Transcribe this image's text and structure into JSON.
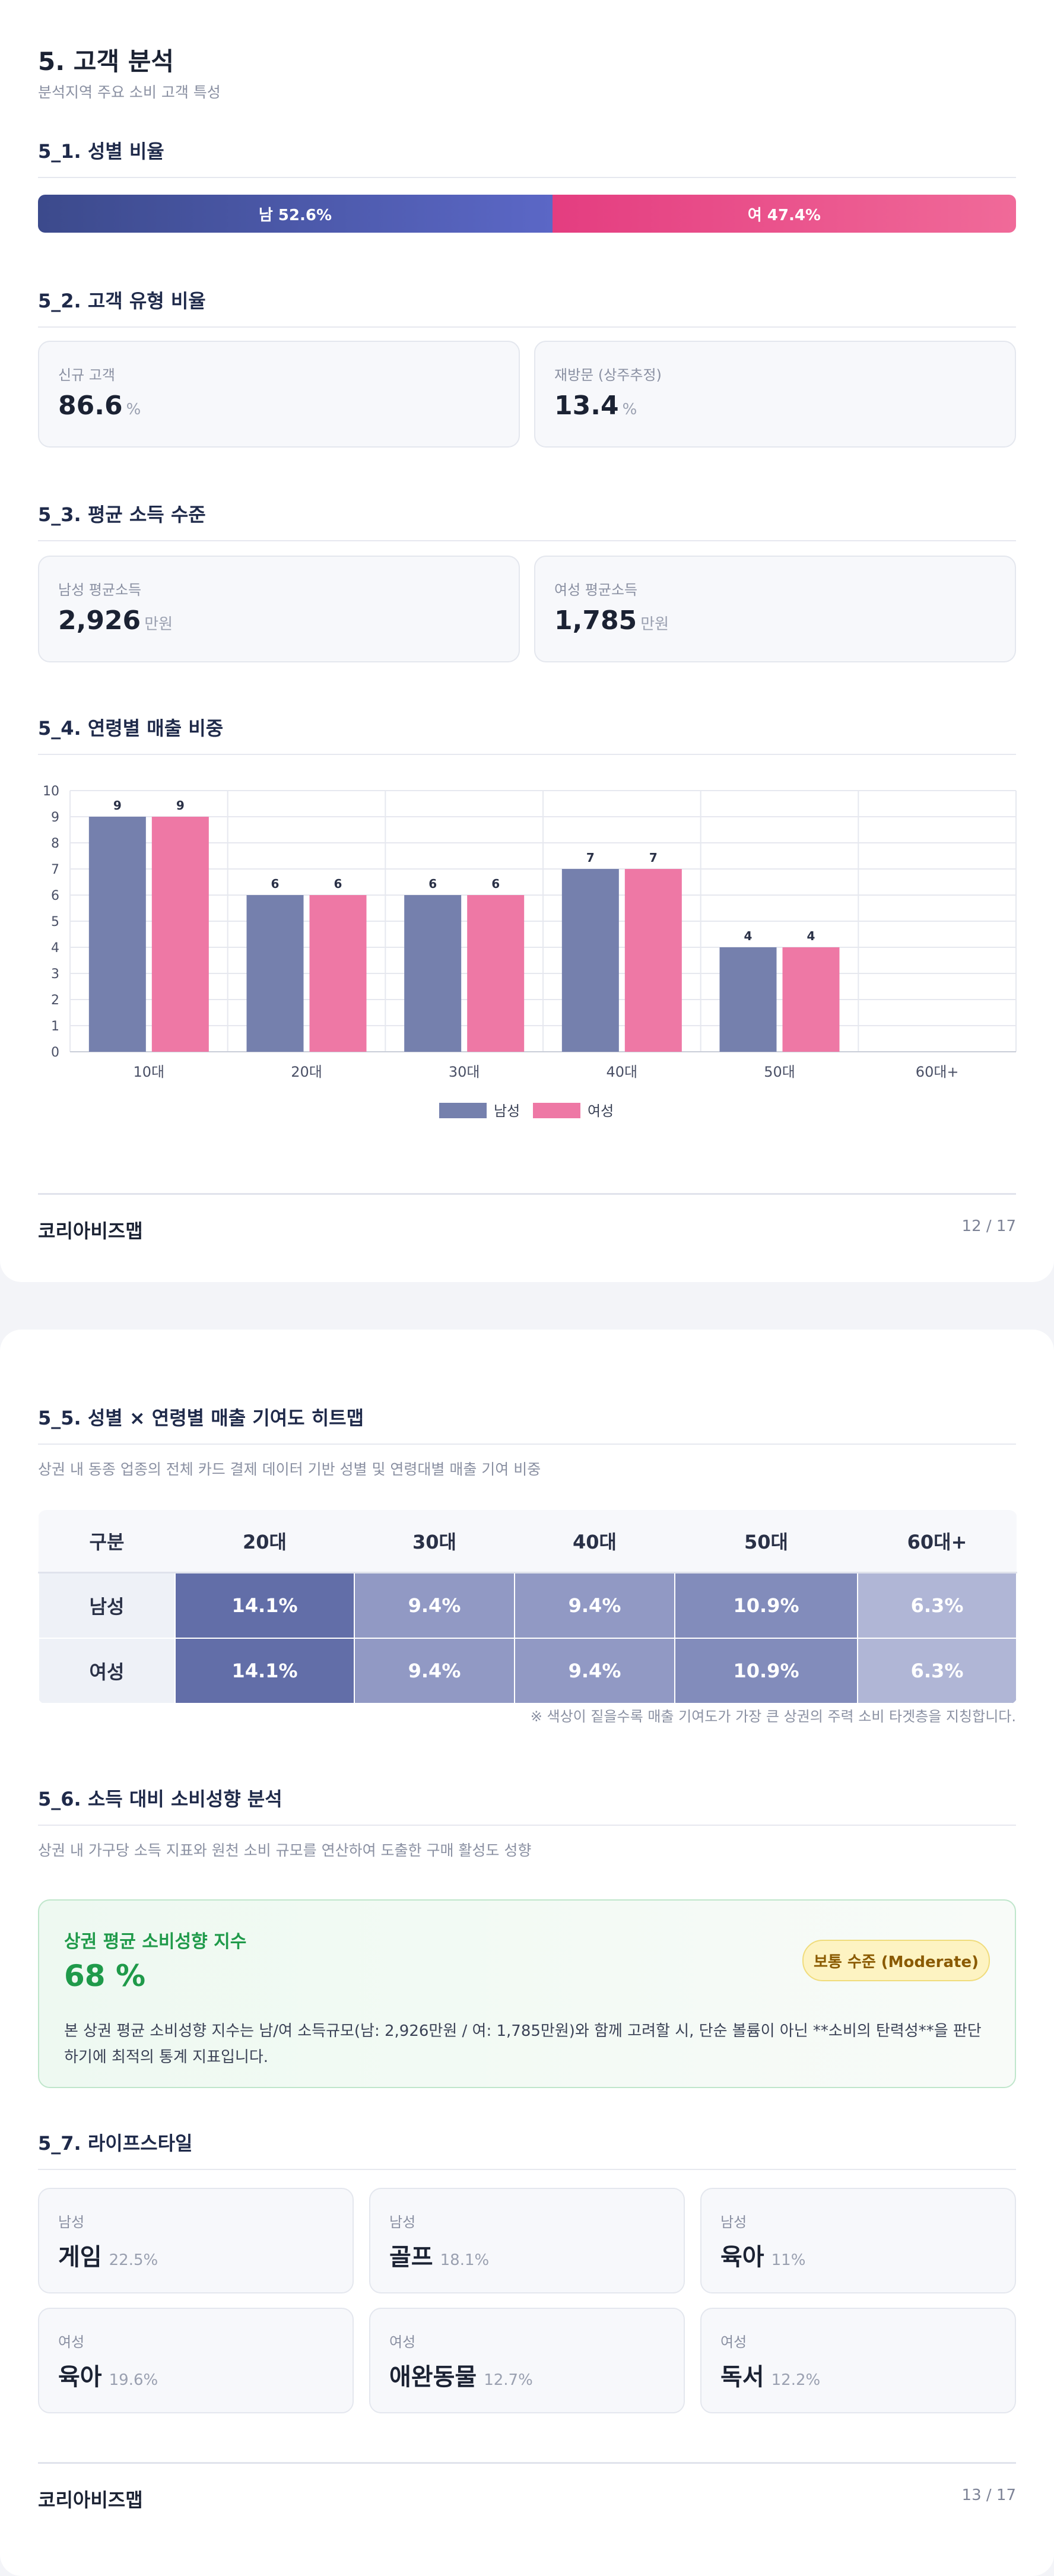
{
  "page1": {
    "title": "5. 고객 분석",
    "subtitle": "분석지역 주요 소비 고객 특성",
    "s1_title": "5_1. 성별 비율",
    "gender": {
      "male_label": "남 52.6%",
      "female_label": "여 47.4%",
      "male_pct": 52.6,
      "female_pct": 47.4,
      "male_color": "#4a58a8",
      "female_color": "#ec4a88"
    },
    "s2_title": "5_2. 고객 유형 비율",
    "new_customer": {
      "label": "신규 고객",
      "value": "86.6",
      "unit": "%"
    },
    "revisit": {
      "label": "재방문 (상주추정)",
      "value": "13.4",
      "unit": "%"
    },
    "s3_title": "5_3. 평균 소득 수준",
    "male_income": {
      "label": "남성 평균소득",
      "value": "2,926",
      "unit": "만원"
    },
    "female_income": {
      "label": "여성 평균소득",
      "value": "1,785",
      "unit": "만원"
    },
    "s4_title": "5_4. 연령별 매출 비중",
    "footer": {
      "brand": "코리아비즈맵",
      "page": "12 / 17"
    }
  },
  "chart_data": {
    "type": "bar",
    "categories": [
      "10대",
      "20대",
      "30대",
      "40대",
      "50대",
      "60대+"
    ],
    "series": [
      {
        "name": "남성",
        "values": [
          9,
          6,
          6,
          7,
          4,
          0
        ],
        "color": "#7580ad"
      },
      {
        "name": "여성",
        "values": [
          9,
          6,
          6,
          7,
          4,
          0
        ],
        "color": "#ee78a5"
      }
    ],
    "ylim": [
      0,
      10
    ],
    "yticks": [
      0,
      1,
      2,
      3,
      4,
      5,
      6,
      7,
      8,
      9,
      10
    ],
    "data_labels": true,
    "grid": true,
    "legend": "bottom"
  },
  "page2": {
    "s5_title": "5_5. 성별 × 연령별 매출 기여도 히트맵",
    "s5_sub": "상권 내 동종 업종의 전체 카드 결제 데이터 기반 성별 및 연령대별 매출 기여 비중",
    "heatmap": {
      "headers": [
        "구분",
        "20대",
        "30대",
        "40대",
        "50대",
        "60대+"
      ],
      "rows": [
        {
          "label": "남성",
          "values": [
            "14.1%",
            "9.4%",
            "9.4%",
            "10.9%",
            "6.3%"
          ]
        },
        {
          "label": "여성",
          "values": [
            "14.1%",
            "9.4%",
            "9.4%",
            "10.9%",
            "6.3%"
          ]
        }
      ]
    },
    "heat_note": "※ 색상이 짙을수록 매출 기여도가 가장 큰 상권의 주력 소비 타겟층을 지칭합니다.",
    "s6_title": "5_6. 소득 대비 소비성향 분석",
    "s6_sub": "상권 내 가구당 소득 지표와 원천 소비 규모를 연산하여 도출한 구매 활성도 성향",
    "spend": {
      "title": "상권 평균 소비성향 지수",
      "value": "68 %",
      "badge": "보통 수준 (Moderate)",
      "desc": "본 상권 평균 소비성향 지수는 남/여 소득규모(남: 2,926만원 / 여: 1,785만원)와 함께 고려할 시, 단순 볼륨이 아닌 **소비의 탄력성**을 판단하기에 최적의 통계 지표입니다."
    },
    "s7_title": "5_7. 라이프스타일",
    "lifestyle": [
      {
        "gender": "남성",
        "name": "게임",
        "pct": "22.5%"
      },
      {
        "gender": "남성",
        "name": "골프",
        "pct": "18.1%"
      },
      {
        "gender": "남성",
        "name": "육아",
        "pct": "11%"
      },
      {
        "gender": "여성",
        "name": "육아",
        "pct": "19.6%"
      },
      {
        "gender": "여성",
        "name": "애완동물",
        "pct": "12.7%"
      },
      {
        "gender": "여성",
        "name": "독서",
        "pct": "12.2%"
      }
    ],
    "footer": {
      "brand": "코리아비즈맵",
      "page": "13 / 17"
    }
  }
}
